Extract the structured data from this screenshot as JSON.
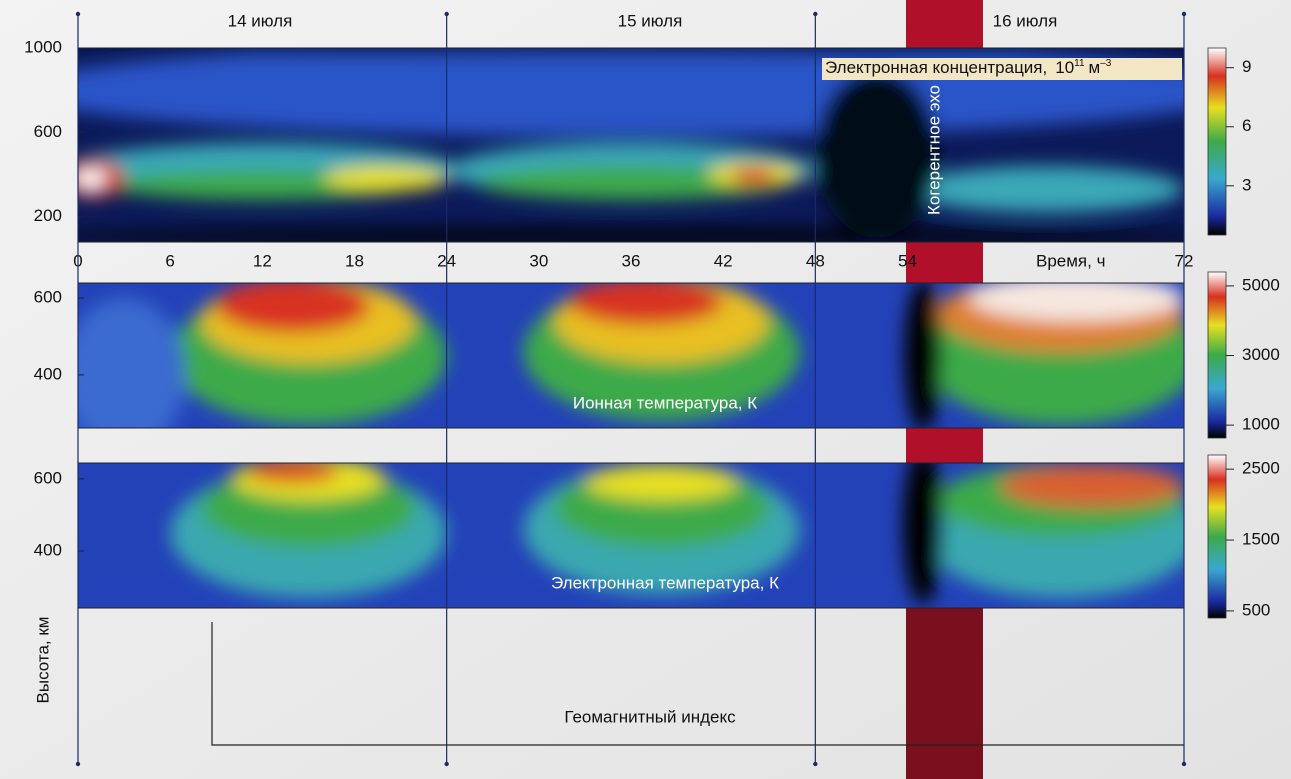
{
  "chart_data": [
    {
      "type": "heatmap",
      "xlim": [
        0,
        72
      ],
      "xticks": [
        0,
        6,
        12,
        18,
        24,
        30,
        36,
        42,
        48,
        54,
        72
      ],
      "xlabel": "Время, ч",
      "days": [
        "14 июля",
        "15 июля",
        "16 июля"
      ],
      "title": "Электронная концентрация,",
      "unit_base": "10",
      "unit_exp": "11",
      "unit": "м",
      "unit_unit_exp": "–3",
      "ylim": [
        80,
        1000
      ],
      "yticks": [
        200,
        600,
        1000
      ],
      "clim": [
        0.5,
        10
      ],
      "cticks": [
        3,
        6,
        9
      ],
      "annotation": "Когерентное эхо"
    },
    {
      "type": "heatmap",
      "title": "Ионная температура, К",
      "xlim": [
        0,
        72
      ],
      "ylim": [
        262,
        639
      ],
      "yticks": [
        400,
        600
      ],
      "clim": [
        630,
        5400
      ],
      "cticks": [
        1000,
        3000,
        5000
      ]
    },
    {
      "type": "heatmap",
      "title": "Электронная температура, К",
      "xlim": [
        0,
        72
      ],
      "ylim": [
        242,
        644
      ],
      "yticks": [
        400,
        600
      ],
      "clim": [
        400,
        2700
      ],
      "cticks": [
        500,
        1500,
        2500
      ],
      "ylabel": "Высота, км",
      "index_label": "Геомагнитный  индекс"
    }
  ]
}
